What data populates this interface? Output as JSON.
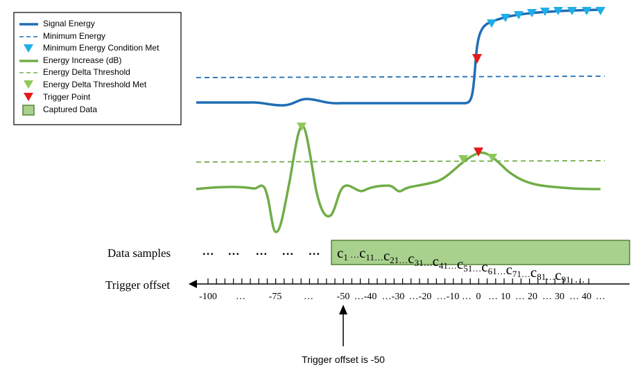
{
  "legend": {
    "items": [
      "Signal Energy",
      "Minimum Energy",
      "Minimum Energy Condition Met",
      "Energy Increase (dB)",
      "Energy Delta Threshold",
      "Energy Delta Threshold Met",
      "Trigger Point",
      "Captured Data"
    ]
  },
  "data_samples": {
    "label": "Data samples",
    "dots": [
      "…",
      "…",
      "…",
      "…",
      "…"
    ],
    "separator": "…",
    "captured": [
      {
        "letter": "c",
        "sub": "1"
      },
      {
        "letter": "c",
        "sub": "11"
      },
      {
        "letter": "c",
        "sub": "21"
      },
      {
        "letter": "c",
        "sub": "31"
      },
      {
        "letter": "c",
        "sub": "41"
      },
      {
        "letter": "c",
        "sub": "51"
      },
      {
        "letter": "c",
        "sub": "61"
      },
      {
        "letter": "c",
        "sub": "71"
      },
      {
        "letter": "c",
        "sub": "81"
      },
      {
        "letter": "c",
        "sub": "91"
      }
    ]
  },
  "trigger_offset": {
    "label": "Trigger offset",
    "ticks": [
      "-100",
      "…",
      "-75",
      "…",
      "-50",
      "…-40",
      "…-30",
      "…-20",
      "…-10",
      "…",
      "0",
      "…",
      "10",
      "…",
      "20",
      "…",
      "30",
      "…",
      "40",
      "…"
    ],
    "annotation": "Trigger offset is -50"
  }
}
